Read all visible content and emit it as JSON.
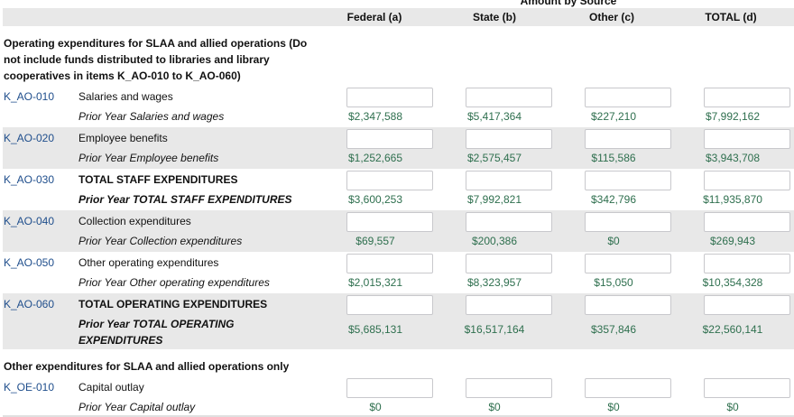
{
  "header": {
    "super_label": "Amount by Source",
    "columns": [
      "Federal (a)",
      "State (b)",
      "Other (c)",
      "TOTAL (d)"
    ]
  },
  "colors": {
    "code": "#1f4e8c",
    "value": "#2e6f4e",
    "stripe": "#e8e8e8"
  },
  "sections": [
    {
      "title": "Operating expenditures for SLAA and allied operations (Do not include funds distributed to libraries and library cooperatives in items K_AO-010 to K_AO-060)",
      "rows": [
        {
          "code": "K_AO-010",
          "label": "Salaries and wages",
          "prior_label": "Prior Year Salaries and wages",
          "bold": false,
          "inputs": [
            "",
            "",
            "",
            ""
          ],
          "prior": [
            "$2,347,588",
            "$5,417,364",
            "$227,210",
            "$7,992,162"
          ]
        },
        {
          "code": "K_AO-020",
          "label": "Employee benefits",
          "prior_label": "Prior Year Employee benefits",
          "bold": false,
          "inputs": [
            "",
            "",
            "",
            ""
          ],
          "prior": [
            "$1,252,665",
            "$2,575,457",
            "$115,586",
            "$3,943,708"
          ]
        },
        {
          "code": "K_AO-030",
          "label": "TOTAL STAFF EXPENDITURES",
          "prior_label": "Prior Year TOTAL STAFF EXPENDITURES",
          "bold": true,
          "inputs": [
            "",
            "",
            "",
            ""
          ],
          "prior": [
            "$3,600,253",
            "$7,992,821",
            "$342,796",
            "$11,935,870"
          ]
        },
        {
          "code": "K_AO-040",
          "label": "Collection expenditures",
          "prior_label": "Prior Year Collection expenditures",
          "bold": false,
          "inputs": [
            "",
            "",
            "",
            ""
          ],
          "prior": [
            "$69,557",
            "$200,386",
            "$0",
            "$269,943"
          ]
        },
        {
          "code": "K_AO-050",
          "label": "Other operating expenditures",
          "prior_label": "Prior Year Other operating expenditures",
          "bold": false,
          "inputs": [
            "",
            "",
            "",
            ""
          ],
          "prior": [
            "$2,015,321",
            "$8,323,957",
            "$15,050",
            "$10,354,328"
          ]
        },
        {
          "code": "K_AO-060",
          "label": "TOTAL OPERATING EXPENDITURES",
          "prior_label": "Prior Year TOTAL OPERATING EXPENDITURES",
          "bold": true,
          "inputs": [
            "",
            "",
            "",
            ""
          ],
          "prior": [
            "$5,685,131",
            "$16,517,164",
            "$357,846",
            "$22,560,141"
          ]
        }
      ]
    },
    {
      "title": "Other expenditures for SLAA and allied operations only",
      "rows": [
        {
          "code": "K_OE-010",
          "label": "Capital outlay",
          "prior_label": "Prior Year Capital outlay",
          "bold": false,
          "inputs": [
            "",
            "",
            "",
            ""
          ],
          "prior": [
            "$0",
            "$0",
            "$0",
            "$0"
          ]
        }
      ]
    }
  ]
}
